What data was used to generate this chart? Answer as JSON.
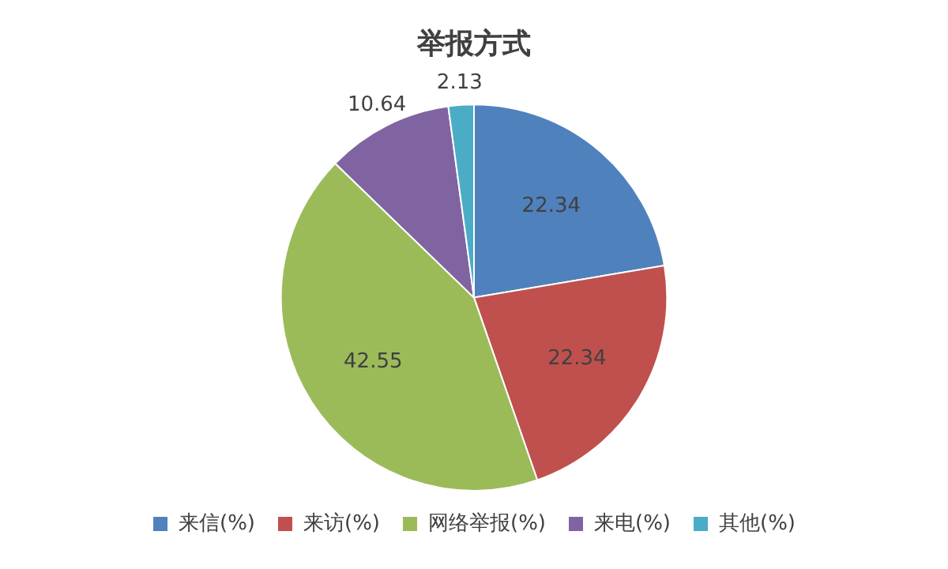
{
  "chart_data": {
    "type": "pie",
    "title": "举报方式",
    "categories": [
      "来信(%)",
      "来访(%)",
      "网络举报(%)",
      "来电(%)",
      "其他(%)"
    ],
    "values": [
      22.34,
      22.34,
      42.55,
      10.64,
      2.13
    ],
    "colors": [
      "#4f81bd",
      "#c0504d",
      "#9bbb59",
      "#8064a2",
      "#4bacc6"
    ],
    "data_labels": true,
    "legend": "bottom"
  }
}
